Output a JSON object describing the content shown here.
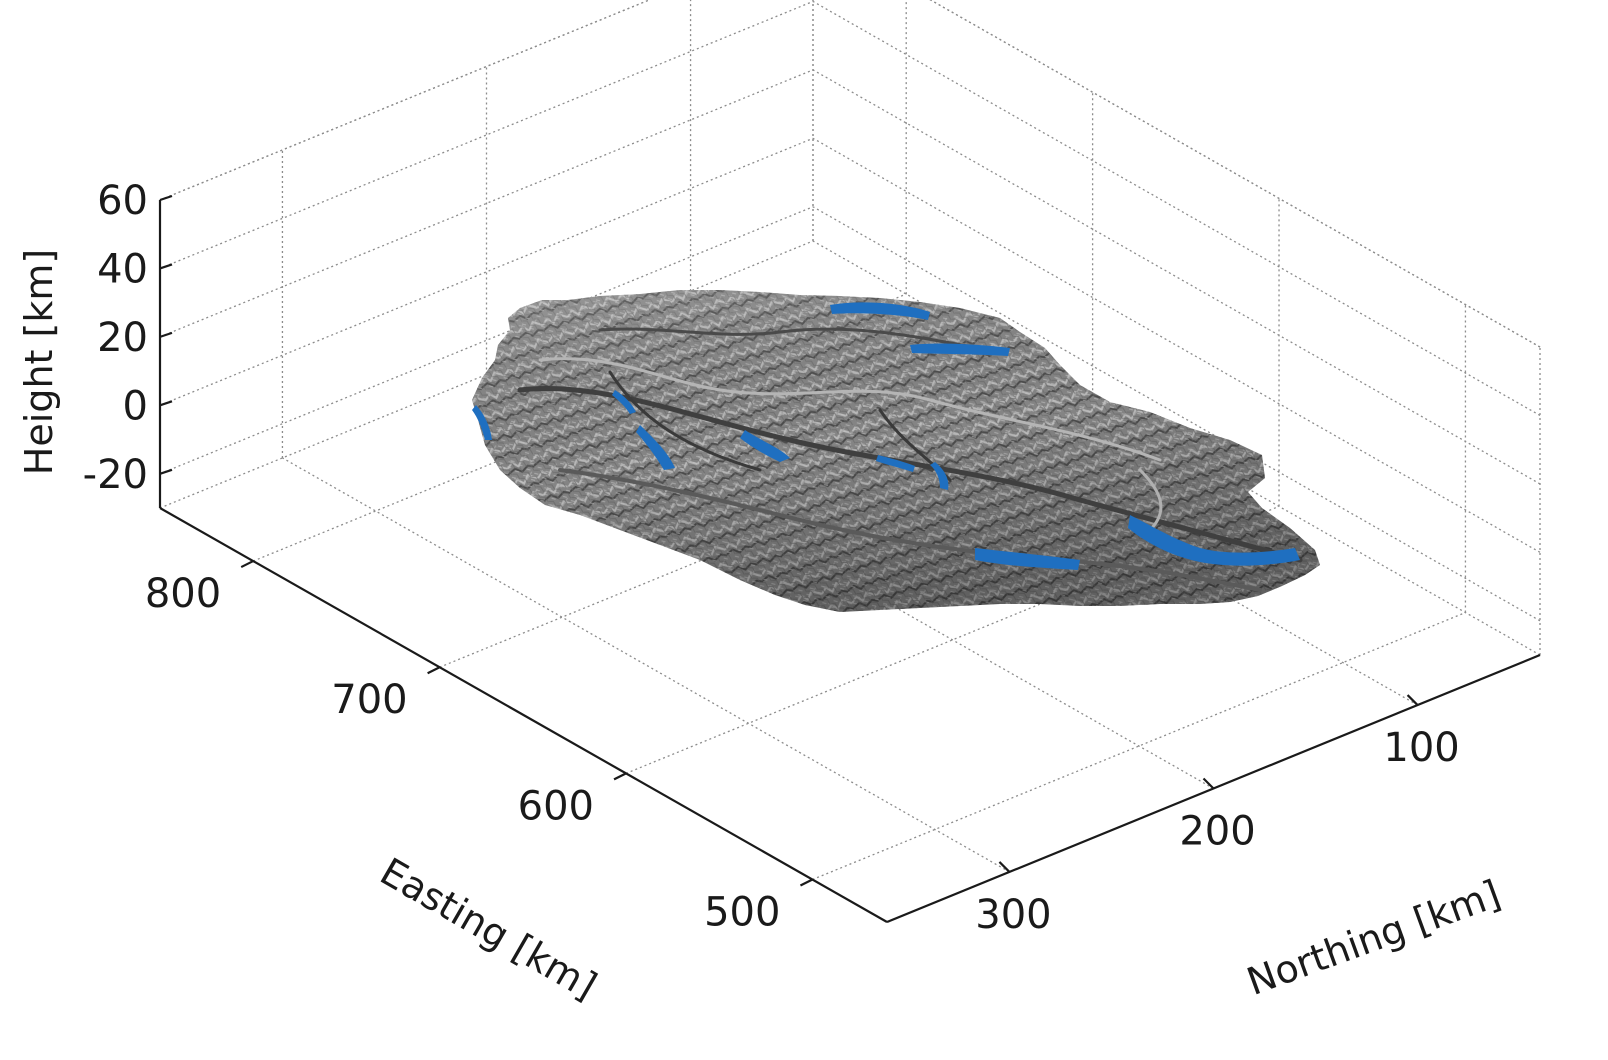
{
  "chart_data": {
    "type": "surface3d",
    "title": "",
    "xlabel": "Easting [km]",
    "ylabel": "Northing [km]",
    "zlabel": "Height [km]",
    "x_ticks": [
      500,
      600,
      700,
      800
    ],
    "y_ticks": [
      100,
      200,
      300
    ],
    "z_ticks": [
      -20,
      0,
      20,
      40,
      60
    ],
    "xlim": [
      460,
      850
    ],
    "ylim": [
      40,
      360
    ],
    "zlim": [
      -30,
      60
    ],
    "grid": true,
    "surface": {
      "description_visible": "shaded relief terrain surface near z = 0",
      "colors": {
        "terrain": "#8a8a8a",
        "terrain_dark": "#4f4f4f",
        "water": "#1f6fc0"
      }
    }
  }
}
